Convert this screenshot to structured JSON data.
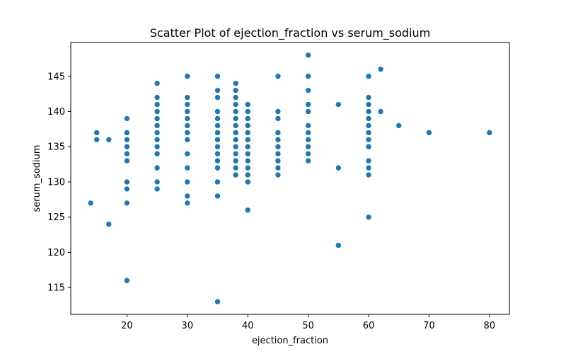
{
  "chart_data": {
    "type": "scatter",
    "title": "Scatter Plot of ejection_fraction vs serum_sodium",
    "xlabel": "ejection_fraction",
    "ylabel": "serum_sodium",
    "xlim": [
      10.7,
      83.3
    ],
    "ylim": [
      111.2,
      149.8
    ],
    "xticks": [
      20,
      30,
      40,
      50,
      60,
      70,
      80
    ],
    "yticks": [
      115,
      120,
      125,
      130,
      135,
      140,
      145
    ],
    "grid": false,
    "point_color": "#1f77b4",
    "points": [
      [
        14,
        127
      ],
      [
        15,
        136
      ],
      [
        15,
        137
      ],
      [
        17,
        124
      ],
      [
        17,
        136
      ],
      [
        20,
        116
      ],
      [
        20,
        127
      ],
      [
        20,
        129
      ],
      [
        20,
        130
      ],
      [
        20,
        133
      ],
      [
        20,
        134
      ],
      [
        20,
        135
      ],
      [
        20,
        136
      ],
      [
        20,
        137
      ],
      [
        20,
        139
      ],
      [
        25,
        129
      ],
      [
        25,
        130
      ],
      [
        25,
        132
      ],
      [
        25,
        134
      ],
      [
        25,
        135
      ],
      [
        25,
        136
      ],
      [
        25,
        137
      ],
      [
        25,
        138
      ],
      [
        25,
        139
      ],
      [
        25,
        140
      ],
      [
        25,
        141
      ],
      [
        25,
        142
      ],
      [
        25,
        144
      ],
      [
        30,
        127
      ],
      [
        30,
        128
      ],
      [
        30,
        130
      ],
      [
        30,
        132
      ],
      [
        30,
        134
      ],
      [
        30,
        136
      ],
      [
        30,
        137
      ],
      [
        30,
        138
      ],
      [
        30,
        139
      ],
      [
        30,
        140
      ],
      [
        30,
        141
      ],
      [
        30,
        142
      ],
      [
        30,
        145
      ],
      [
        35,
        113
      ],
      [
        35,
        128
      ],
      [
        35,
        130
      ],
      [
        35,
        132
      ],
      [
        35,
        133
      ],
      [
        35,
        134
      ],
      [
        35,
        135
      ],
      [
        35,
        136
      ],
      [
        35,
        137
      ],
      [
        35,
        138
      ],
      [
        35,
        139
      ],
      [
        35,
        140
      ],
      [
        35,
        142
      ],
      [
        35,
        143
      ],
      [
        35,
        145
      ],
      [
        38,
        131
      ],
      [
        38,
        132
      ],
      [
        38,
        133
      ],
      [
        38,
        134
      ],
      [
        38,
        135
      ],
      [
        38,
        136
      ],
      [
        38,
        137
      ],
      [
        38,
        138
      ],
      [
        38,
        139
      ],
      [
        38,
        140
      ],
      [
        38,
        141
      ],
      [
        38,
        142
      ],
      [
        38,
        143
      ],
      [
        38,
        144
      ],
      [
        40,
        126
      ],
      [
        40,
        130
      ],
      [
        40,
        131
      ],
      [
        40,
        132
      ],
      [
        40,
        133
      ],
      [
        40,
        134
      ],
      [
        40,
        135
      ],
      [
        40,
        136
      ],
      [
        40,
        137
      ],
      [
        40,
        138
      ],
      [
        40,
        139
      ],
      [
        40,
        140
      ],
      [
        40,
        141
      ],
      [
        45,
        131
      ],
      [
        45,
        132
      ],
      [
        45,
        133
      ],
      [
        45,
        134
      ],
      [
        45,
        135
      ],
      [
        45,
        136
      ],
      [
        45,
        137
      ],
      [
        45,
        139
      ],
      [
        45,
        140
      ],
      [
        45,
        145
      ],
      [
        50,
        133
      ],
      [
        50,
        134
      ],
      [
        50,
        135
      ],
      [
        50,
        136
      ],
      [
        50,
        137
      ],
      [
        50,
        138
      ],
      [
        50,
        140
      ],
      [
        50,
        141
      ],
      [
        50,
        143
      ],
      [
        50,
        145
      ],
      [
        50,
        148
      ],
      [
        55,
        121
      ],
      [
        55,
        132
      ],
      [
        55,
        141
      ],
      [
        60,
        125
      ],
      [
        60,
        131
      ],
      [
        60,
        132
      ],
      [
        60,
        133
      ],
      [
        60,
        135
      ],
      [
        60,
        136
      ],
      [
        60,
        137
      ],
      [
        60,
        138
      ],
      [
        60,
        139
      ],
      [
        60,
        140
      ],
      [
        60,
        141
      ],
      [
        60,
        142
      ],
      [
        60,
        145
      ],
      [
        62,
        140
      ],
      [
        62,
        146
      ],
      [
        65,
        138
      ],
      [
        70,
        137
      ],
      [
        80,
        137
      ]
    ]
  }
}
